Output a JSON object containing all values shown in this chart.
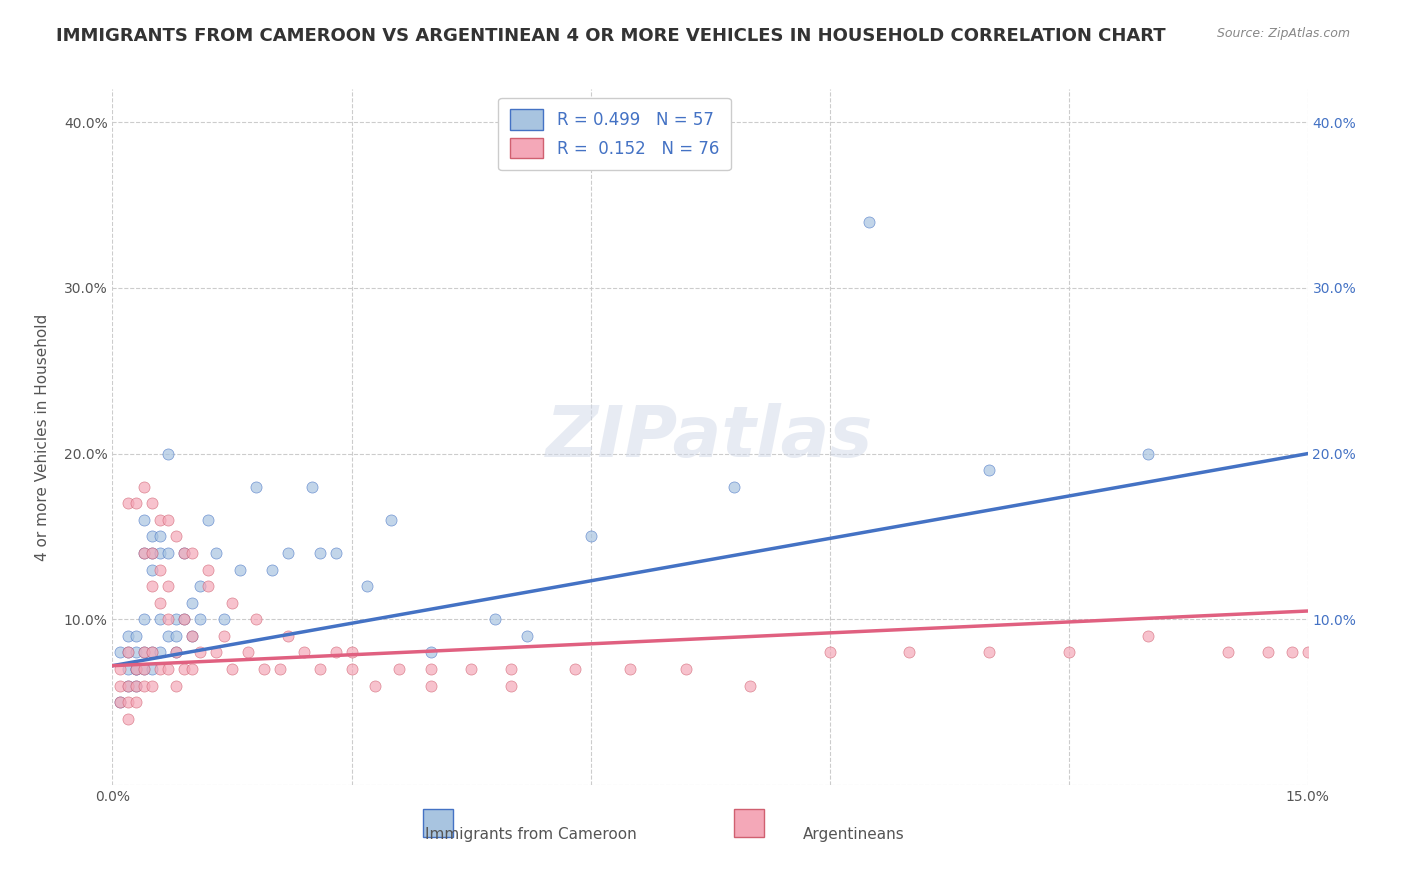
{
  "title": "IMMIGRANTS FROM CAMEROON VS ARGENTINEAN 4 OR MORE VEHICLES IN HOUSEHOLD CORRELATION CHART",
  "source": "Source: ZipAtlas.com",
  "xlabel": "",
  "ylabel": "4 or more Vehicles in Household",
  "legend_label1": "Immigrants from Cameroon",
  "legend_label2": "Argentineans",
  "R1": 0.499,
  "N1": 57,
  "R2": 0.152,
  "N2": 76,
  "xlim": [
    0.0,
    0.15
  ],
  "ylim": [
    0.0,
    0.42
  ],
  "xticks": [
    0.0,
    0.03,
    0.06,
    0.09,
    0.12,
    0.15
  ],
  "xticklabels": [
    "0.0%",
    "",
    "",
    "",
    "",
    "15.0%"
  ],
  "yticks": [
    0.0,
    0.1,
    0.2,
    0.3,
    0.4
  ],
  "yticklabels": [
    "",
    "10.0%",
    "20.0%",
    "30.0%",
    "40.0%"
  ],
  "color1": "#a8c4e0",
  "color2": "#f4a8b8",
  "line_color1": "#4472c4",
  "line_color2": "#e06080",
  "bg_color": "#ffffff",
  "watermark": "ZIPatlas",
  "title_color": "#333333",
  "title_fontsize": 13,
  "axis_label_fontsize": 11,
  "tick_fontsize": 10,
  "scatter1_x": [
    0.001,
    0.001,
    0.002,
    0.002,
    0.002,
    0.002,
    0.003,
    0.003,
    0.003,
    0.003,
    0.003,
    0.004,
    0.004,
    0.004,
    0.004,
    0.004,
    0.005,
    0.005,
    0.005,
    0.005,
    0.005,
    0.006,
    0.006,
    0.006,
    0.006,
    0.007,
    0.007,
    0.007,
    0.008,
    0.008,
    0.008,
    0.009,
    0.009,
    0.01,
    0.01,
    0.011,
    0.011,
    0.012,
    0.013,
    0.014,
    0.016,
    0.018,
    0.02,
    0.022,
    0.025,
    0.026,
    0.028,
    0.032,
    0.035,
    0.04,
    0.048,
    0.052,
    0.06,
    0.078,
    0.095,
    0.11,
    0.13
  ],
  "scatter1_y": [
    0.08,
    0.05,
    0.07,
    0.06,
    0.09,
    0.08,
    0.07,
    0.06,
    0.08,
    0.09,
    0.07,
    0.14,
    0.16,
    0.08,
    0.1,
    0.07,
    0.15,
    0.14,
    0.13,
    0.08,
    0.07,
    0.15,
    0.14,
    0.1,
    0.08,
    0.2,
    0.14,
    0.09,
    0.1,
    0.09,
    0.08,
    0.14,
    0.1,
    0.09,
    0.11,
    0.12,
    0.1,
    0.16,
    0.14,
    0.1,
    0.13,
    0.18,
    0.13,
    0.14,
    0.18,
    0.14,
    0.14,
    0.12,
    0.16,
    0.08,
    0.1,
    0.09,
    0.15,
    0.18,
    0.34,
    0.19,
    0.2
  ],
  "scatter2_x": [
    0.001,
    0.001,
    0.001,
    0.002,
    0.002,
    0.002,
    0.002,
    0.003,
    0.003,
    0.003,
    0.004,
    0.004,
    0.004,
    0.004,
    0.005,
    0.005,
    0.005,
    0.005,
    0.006,
    0.006,
    0.006,
    0.007,
    0.007,
    0.007,
    0.008,
    0.008,
    0.009,
    0.009,
    0.01,
    0.01,
    0.011,
    0.012,
    0.013,
    0.014,
    0.015,
    0.017,
    0.019,
    0.021,
    0.024,
    0.026,
    0.028,
    0.03,
    0.033,
    0.036,
    0.04,
    0.045,
    0.05,
    0.058,
    0.065,
    0.072,
    0.08,
    0.09,
    0.1,
    0.11,
    0.12,
    0.13,
    0.14,
    0.145,
    0.148,
    0.15,
    0.002,
    0.003,
    0.004,
    0.005,
    0.006,
    0.007,
    0.008,
    0.009,
    0.01,
    0.012,
    0.015,
    0.018,
    0.022,
    0.03,
    0.04,
    0.05
  ],
  "scatter2_y": [
    0.07,
    0.06,
    0.05,
    0.08,
    0.06,
    0.05,
    0.04,
    0.07,
    0.06,
    0.05,
    0.14,
    0.08,
    0.07,
    0.06,
    0.14,
    0.12,
    0.08,
    0.06,
    0.13,
    0.11,
    0.07,
    0.12,
    0.1,
    0.07,
    0.08,
    0.06,
    0.1,
    0.07,
    0.09,
    0.07,
    0.08,
    0.12,
    0.08,
    0.09,
    0.07,
    0.08,
    0.07,
    0.07,
    0.08,
    0.07,
    0.08,
    0.07,
    0.06,
    0.07,
    0.06,
    0.07,
    0.07,
    0.07,
    0.07,
    0.07,
    0.06,
    0.08,
    0.08,
    0.08,
    0.08,
    0.09,
    0.08,
    0.08,
    0.08,
    0.08,
    0.17,
    0.17,
    0.18,
    0.17,
    0.16,
    0.16,
    0.15,
    0.14,
    0.14,
    0.13,
    0.11,
    0.1,
    0.09,
    0.08,
    0.07,
    0.06
  ],
  "trendline1_x": [
    0.0,
    0.15
  ],
  "trendline1_y": [
    0.072,
    0.2
  ],
  "trendline2_x": [
    0.0,
    0.15
  ],
  "trendline2_y": [
    0.072,
    0.105
  ],
  "grid_color": "#cccccc",
  "watermark_color": "#d0d8e8",
  "marker_size": 8,
  "marker_alpha": 0.7
}
